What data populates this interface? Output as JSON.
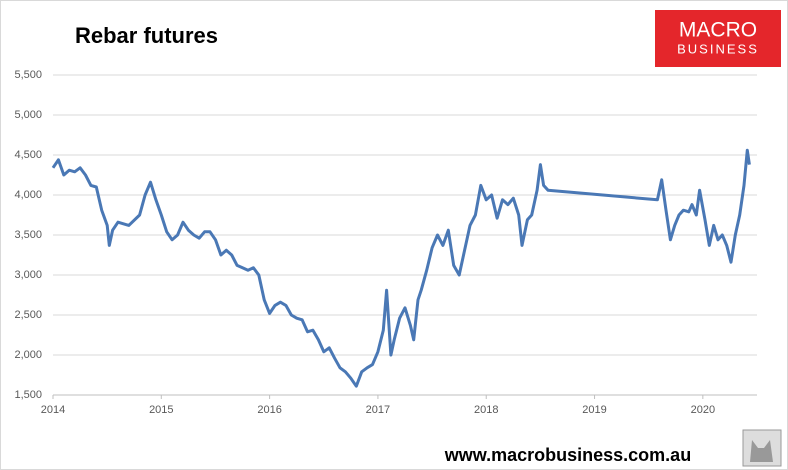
{
  "chart_data": {
    "type": "line",
    "title": "Rebar futures",
    "logo": {
      "line1": "MACRO",
      "line2": "BUSINESS"
    },
    "footer": "www.macrobusiness.com.au",
    "xlim": [
      2014,
      2020.5
    ],
    "xticks": [
      2014,
      2015,
      2016,
      2017,
      2018,
      2019,
      2020
    ],
    "ylim": [
      1500,
      5500
    ],
    "yticks": [
      {
        "value": 1500,
        "label": "1,500"
      },
      {
        "value": 2000,
        "label": "2,000"
      },
      {
        "value": 2500,
        "label": "2,500"
      },
      {
        "value": 3000,
        "label": "3,000"
      },
      {
        "value": 3500,
        "label": "3,500"
      },
      {
        "value": 4000,
        "label": "4,000"
      },
      {
        "value": 4500,
        "label": "4,500"
      },
      {
        "value": 5000,
        "label": "5,000"
      },
      {
        "value": 5500,
        "label": "5,500"
      }
    ],
    "grid": true,
    "color": "#4a78b5",
    "x": [
      2014.0,
      2014.05,
      2014.1,
      2014.15,
      2014.2,
      2014.25,
      2014.3,
      2014.35,
      2014.4,
      2014.45,
      2014.5,
      2014.52,
      2014.55,
      2014.6,
      2014.7,
      2014.8,
      2014.85,
      2014.9,
      2014.95,
      2015.0,
      2015.05,
      2015.1,
      2015.15,
      2015.2,
      2015.25,
      2015.3,
      2015.35,
      2015.4,
      2015.45,
      2015.5,
      2015.55,
      2015.6,
      2015.65,
      2015.7,
      2015.75,
      2015.8,
      2015.85,
      2015.9,
      2015.95,
      2016.0,
      2016.05,
      2016.1,
      2016.15,
      2016.2,
      2016.25,
      2016.3,
      2016.35,
      2016.4,
      2016.45,
      2016.5,
      2016.55,
      2016.6,
      2016.65,
      2016.7,
      2016.75,
      2016.8,
      2016.85,
      2016.9,
      2016.95,
      2017.0,
      2017.05,
      2017.08,
      2017.12,
      2017.15,
      2017.2,
      2017.25,
      2017.3,
      2017.33,
      2017.37,
      2017.4,
      2017.45,
      2017.5,
      2017.55,
      2017.6,
      2017.65,
      2017.7,
      2017.75,
      2017.8,
      2017.85,
      2017.9,
      2017.95,
      2018.0,
      2018.05,
      2018.1,
      2018.15,
      2018.2,
      2018.25,
      2018.3,
      2018.33,
      2018.38,
      2018.42,
      2018.47,
      2018.5,
      2018.53,
      2018.57,
      2019.58,
      2019.62,
      2019.66,
      2019.7,
      2019.74,
      2019.78,
      2019.82,
      2019.87,
      2019.9,
      2019.94,
      2019.97,
      2020.02,
      2020.06,
      2020.1,
      2020.14,
      2020.18,
      2020.22,
      2020.26,
      2020.3,
      2020.34,
      2020.38,
      2020.41,
      2020.43
    ],
    "values": [
      4340,
      4440,
      4250,
      4310,
      4290,
      4340,
      4250,
      4120,
      4100,
      3810,
      3620,
      3370,
      3560,
      3660,
      3620,
      3750,
      4000,
      4160,
      3940,
      3750,
      3540,
      3440,
      3500,
      3660,
      3560,
      3500,
      3460,
      3540,
      3540,
      3440,
      3250,
      3310,
      3250,
      3120,
      3090,
      3060,
      3090,
      3000,
      2690,
      2520,
      2620,
      2660,
      2620,
      2500,
      2460,
      2440,
      2290,
      2310,
      2190,
      2040,
      2090,
      1960,
      1840,
      1790,
      1710,
      1610,
      1790,
      1840,
      1880,
      2040,
      2310,
      2810,
      2000,
      2190,
      2460,
      2590,
      2370,
      2190,
      2690,
      2810,
      3060,
      3340,
      3500,
      3370,
      3560,
      3120,
      3000,
      3310,
      3620,
      3750,
      4120,
      3940,
      4000,
      3710,
      3940,
      3880,
      3960,
      3750,
      3370,
      3690,
      3750,
      4060,
      4380,
      4120,
      4060,
      3940,
      4190,
      3810,
      3440,
      3620,
      3750,
      3810,
      3790,
      3880,
      3750,
      4060,
      3690,
      3370,
      3620,
      3440,
      3500,
      3370,
      3160,
      3500,
      3750,
      4120,
      4560,
      4380
    ]
  }
}
